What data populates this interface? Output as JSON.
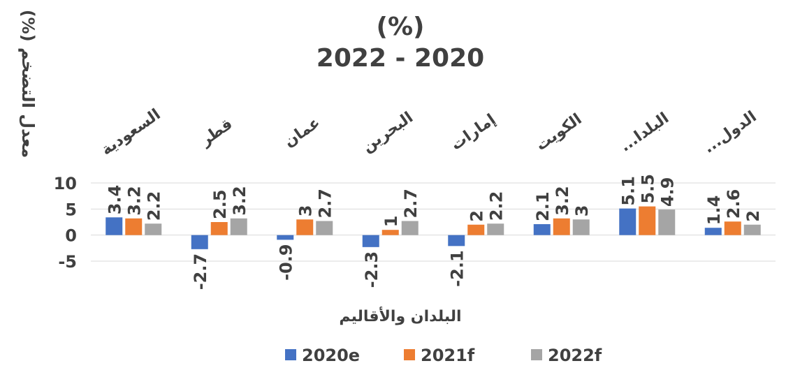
{
  "chart_data": {
    "type": "bar",
    "title_line1": "(%)",
    "title_line2": "2022 - 2020",
    "xlabel": "البلدان والأقاليم",
    "ylabel": "معدل التضخم (%)",
    "ylim": [
      -5,
      10
    ],
    "yticks": [
      -5,
      0,
      5,
      10
    ],
    "grid": true,
    "legend_position": "bottom",
    "categories": [
      "السعودية",
      "قطر",
      "عمان",
      "البحرين",
      "إمارات",
      "الكويت",
      "البلدا...",
      "الدول..."
    ],
    "series": [
      {
        "name": "2020e",
        "color": "#4472C4",
        "values": [
          3.4,
          -2.7,
          -0.9,
          -2.3,
          -2.1,
          2.1,
          5.1,
          1.4
        ],
        "labels": [
          "3.4",
          "-2.7",
          "-0.9",
          "-2.3",
          "-2.1",
          "2.1",
          "5.1",
          "1.4"
        ]
      },
      {
        "name": "2021f",
        "color": "#ED7D31",
        "values": [
          3.2,
          2.5,
          3,
          1,
          2,
          3.2,
          5.5,
          2.6
        ],
        "labels": [
          "3.2",
          "2.5",
          "3",
          "1",
          "2",
          "3.2",
          "5.5",
          "2.6"
        ]
      },
      {
        "name": "2022f",
        "color": "#A5A5A5",
        "values": [
          2.2,
          3.2,
          2.7,
          2.7,
          2.2,
          3,
          4.9,
          2
        ],
        "labels": [
          "2.2",
          "3.2",
          "2.7",
          "2.7",
          "2.2",
          "3",
          "4.9",
          "2"
        ]
      }
    ]
  }
}
